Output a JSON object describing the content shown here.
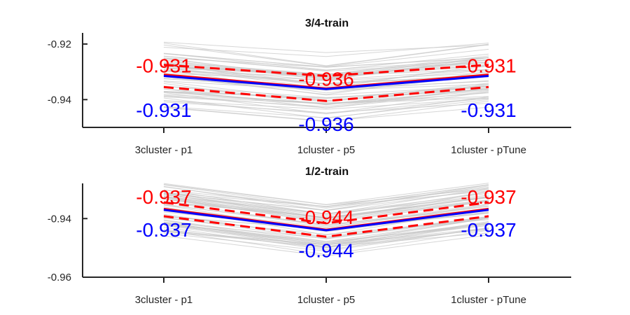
{
  "chart_data": [
    {
      "type": "line",
      "title": "3/4-train",
      "categories": [
        "3cluster - p1",
        "1cluster - p5",
        "1cluster - pTune"
      ],
      "ylim": [
        -0.95,
        -0.916
      ],
      "yticks": [
        -0.92,
        -0.94
      ],
      "ytick_labels": [
        "-0.92",
        "-0.94"
      ],
      "series": [
        {
          "role": "mean",
          "color": "#ff0000",
          "style": "solid",
          "values": [
            -0.931,
            -0.936,
            -0.931
          ]
        },
        {
          "role": "mean",
          "color": "#0000ff",
          "style": "solid",
          "values": [
            -0.9315,
            -0.9362,
            -0.9315
          ]
        },
        {
          "role": "upper-band",
          "color": "#ff0000",
          "style": "dashed",
          "values": [
            -0.9275,
            -0.9315,
            -0.9275
          ]
        },
        {
          "role": "lower-band",
          "color": "#ff0000",
          "style": "dashed",
          "values": [
            -0.9355,
            -0.9405,
            -0.9355
          ]
        }
      ],
      "annotations": [
        {
          "text": "-0.931",
          "color": "#ff0000",
          "x": 0,
          "y": -0.9277
        },
        {
          "text": "-0.936",
          "color": "#ff0000",
          "x": 1,
          "y": -0.9325
        },
        {
          "text": "-0.931",
          "color": "#ff0000",
          "x": 2,
          "y": -0.9277
        },
        {
          "text": "-0.931",
          "color": "#0000ff",
          "x": 0,
          "y": -0.9437
        },
        {
          "text": "-0.936",
          "color": "#0000ff",
          "x": 1,
          "y": -0.9487
        },
        {
          "text": "-0.931",
          "color": "#0000ff",
          "x": 2,
          "y": -0.9437
        }
      ],
      "background_band": {
        "color": "#c8c8c8",
        "count": 60,
        "mean": [
          -0.931,
          -0.936,
          -0.931
        ],
        "spread": 0.0125
      }
    },
    {
      "type": "line",
      "title": "1/2-train",
      "categories": [
        "3cluster - p1",
        "1cluster - p5",
        "1cluster - pTune"
      ],
      "ylim": [
        -0.96,
        -0.928
      ],
      "yticks": [
        -0.94,
        -0.96
      ],
      "ytick_labels": [
        "-0.94",
        "-0.96"
      ],
      "series": [
        {
          "role": "mean",
          "color": "#ff0000",
          "style": "solid",
          "values": [
            -0.9367,
            -0.9438,
            -0.9367
          ]
        },
        {
          "role": "mean",
          "color": "#0000ff",
          "style": "solid",
          "values": [
            -0.937,
            -0.944,
            -0.937
          ]
        },
        {
          "role": "upper-band",
          "color": "#ff0000",
          "style": "dashed",
          "values": [
            -0.9345,
            -0.9416,
            -0.9345
          ]
        },
        {
          "role": "lower-band",
          "color": "#ff0000",
          "style": "dashed",
          "values": [
            -0.9392,
            -0.9462,
            -0.9392
          ]
        }
      ],
      "annotations": [
        {
          "text": "-0.937",
          "color": "#ff0000",
          "x": 0,
          "y": -0.9325
        },
        {
          "text": "-0.944",
          "color": "#ff0000",
          "x": 1,
          "y": -0.9395
        },
        {
          "text": "-0.937",
          "color": "#ff0000",
          "x": 2,
          "y": -0.9325
        },
        {
          "text": "-0.937",
          "color": "#0000ff",
          "x": 0,
          "y": -0.9438
        },
        {
          "text": "-0.944",
          "color": "#0000ff",
          "x": 1,
          "y": -0.9508
        },
        {
          "text": "-0.937",
          "color": "#0000ff",
          "x": 2,
          "y": -0.9438
        }
      ],
      "background_band": {
        "color": "#c8c8c8",
        "count": 60,
        "mean": [
          -0.937,
          -0.944,
          -0.937
        ],
        "spread": 0.0085
      }
    }
  ]
}
